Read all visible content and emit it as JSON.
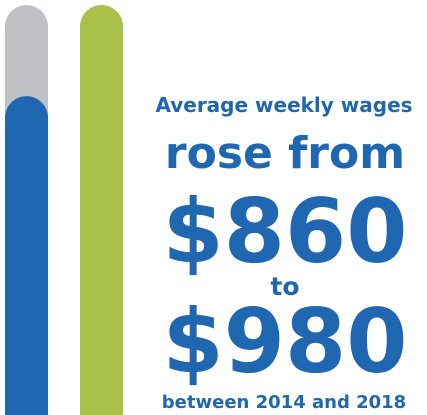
{
  "chart_data": {
    "type": "bar",
    "title": "Average weekly wages",
    "subtitle": "rose from",
    "values": [
      860,
      980
    ],
    "value_labels": [
      "$860",
      "$980"
    ],
    "connector": "to",
    "footnote": "between 2014 and 2018",
    "colors": [
      "#1f67b1",
      "#a9c04a"
    ],
    "track_color": "#c0c1c4",
    "text_color": "#1f67b1",
    "ylim": [
      440,
      980
    ]
  }
}
